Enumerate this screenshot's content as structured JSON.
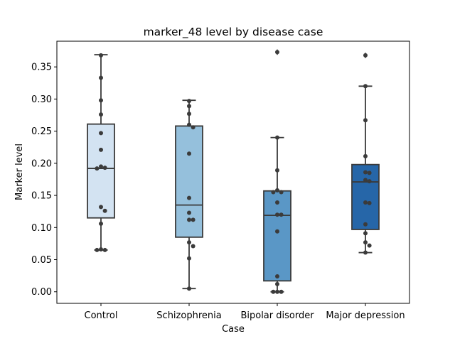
{
  "chart_data": {
    "type": "box",
    "title": "marker_48 level by disease case",
    "xlabel": "Case",
    "ylabel": "Marker level",
    "ylim": [
      -0.018,
      0.39
    ],
    "yticks": [
      0.0,
      0.05,
      0.1,
      0.15,
      0.2,
      0.25,
      0.3,
      0.35
    ],
    "ytick_labels": [
      "0.00",
      "0.05",
      "0.10",
      "0.15",
      "0.20",
      "0.25",
      "0.30",
      "0.35"
    ],
    "grid": false,
    "legend": "none",
    "categories": [
      "Control",
      "Schizophrenia",
      "Bipolar disorder",
      "Major depression"
    ],
    "colors": [
      "#d3e3f2",
      "#95c0dc",
      "#5a97c6",
      "#2666a8"
    ],
    "boxes": [
      {
        "category": "Control",
        "q1": 0.115,
        "median": 0.192,
        "q3": 0.261,
        "whisker_low": 0.065,
        "whisker_high": 0.369,
        "outliers": []
      },
      {
        "category": "Schizophrenia",
        "q1": 0.085,
        "median": 0.135,
        "q3": 0.258,
        "whisker_low": 0.005,
        "whisker_high": 0.298,
        "outliers": []
      },
      {
        "category": "Bipolar disorder",
        "q1": 0.017,
        "median": 0.119,
        "q3": 0.157,
        "whisker_low": 0.0,
        "whisker_high": 0.24,
        "outliers": [
          0.373
        ]
      },
      {
        "category": "Major depression",
        "q1": 0.097,
        "median": 0.171,
        "q3": 0.198,
        "whisker_low": 0.061,
        "whisker_high": 0.32,
        "outliers": [
          0.368
        ]
      }
    ],
    "points": [
      {
        "category": "Control",
        "values": [
          0.368,
          0.333,
          0.298,
          0.276,
          0.247,
          0.221,
          0.195,
          0.193,
          0.192,
          0.132,
          0.126,
          0.106,
          0.066,
          0.065,
          0.065
        ]
      },
      {
        "category": "Schizophrenia",
        "values": [
          0.297,
          0.289,
          0.277,
          0.26,
          0.256,
          0.215,
          0.146,
          0.123,
          0.112,
          0.112,
          0.077,
          0.071,
          0.052,
          0.005
        ]
      },
      {
        "category": "Bipolar disorder",
        "values": [
          0.373,
          0.24,
          0.189,
          0.158,
          0.155,
          0.155,
          0.139,
          0.12,
          0.12,
          0.094,
          0.024,
          0.012,
          0.0,
          0.0,
          0.0
        ]
      },
      {
        "category": "Major depression",
        "values": [
          0.368,
          0.32,
          0.267,
          0.211,
          0.186,
          0.185,
          0.174,
          0.172,
          0.139,
          0.138,
          0.105,
          0.091,
          0.077,
          0.072,
          0.061
        ]
      }
    ]
  }
}
